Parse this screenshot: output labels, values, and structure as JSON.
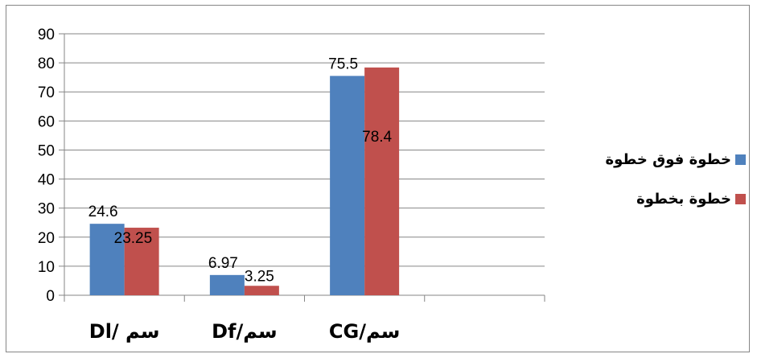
{
  "chart_data": {
    "type": "bar",
    "categories": [
      "Dl/ سم",
      "Df/سم",
      "CG/سم"
    ],
    "series": [
      {
        "name": "خطوة فوق خطوة",
        "values": [
          24.6,
          6.97,
          75.5
        ],
        "labels": [
          "24.6",
          "6.97",
          "75.5"
        ],
        "color": "#4F81BD"
      },
      {
        "name": "خطوة بخطوة",
        "values": [
          23.25,
          3.25,
          78.4
        ],
        "labels": [
          "23.25",
          "3.25",
          "78.4"
        ],
        "color": "#C0504D"
      }
    ],
    "yticks": [
      "0",
      "10",
      "20",
      "30",
      "40",
      "50",
      "60",
      "70",
      "80",
      "90"
    ],
    "ylim": [
      0,
      90
    ],
    "grid": true,
    "legend_position": "right"
  }
}
